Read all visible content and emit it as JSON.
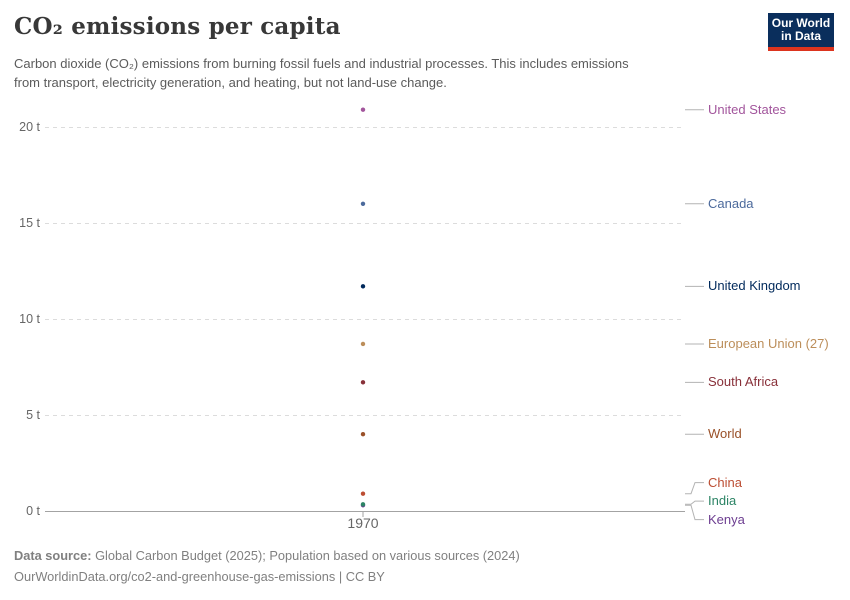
{
  "header": {
    "title": "CO₂ emissions per capita",
    "subtitle_lines": [
      "Carbon dioxide (CO₂) emissions from burning fossil fuels and industrial processes. This includes emissions",
      "from transport, electricity generation, and heating, but not land-use change."
    ],
    "logo": {
      "line1": "Our World",
      "line2": "in Data"
    }
  },
  "colors": {
    "background": "#ffffff",
    "title_text": "#383838",
    "subtitle_text": "#5b5b5b",
    "footer_text": "#808080",
    "grid_line": "#dcdcdc",
    "axis_line": "#a3a3a3",
    "tick_text": "#666666",
    "connector_line": "#b3b3b3",
    "logo_bg": "#0a2e5c",
    "logo_accent": "#dc341e"
  },
  "chart_data": {
    "type": "scatter",
    "title": "CO₂ emissions per capita",
    "unit": "t",
    "x": [
      1970
    ],
    "x_tick_label": "1970",
    "ylim": [
      0,
      21.5
    ],
    "yticks": [
      {
        "value": 0,
        "label": "0 t"
      },
      {
        "value": 5,
        "label": "5 t"
      },
      {
        "value": 10,
        "label": "10 t"
      },
      {
        "value": 15,
        "label": "15 t"
      },
      {
        "value": 20,
        "label": "20 t"
      }
    ],
    "grid": "dashed-horizontal",
    "legend_position": "right-entity-labels",
    "series": [
      {
        "name": "United States",
        "year": 1970,
        "value": 20.9,
        "color": "#A2559C"
      },
      {
        "name": "Canada",
        "year": 1970,
        "value": 16.0,
        "color": "#4C6A9C"
      },
      {
        "name": "United Kingdom",
        "year": 1970,
        "value": 11.7,
        "color": "#00295B"
      },
      {
        "name": "European Union (27)",
        "year": 1970,
        "value": 8.7,
        "color": "#BC8E5A"
      },
      {
        "name": "South Africa",
        "year": 1970,
        "value": 6.7,
        "color": "#883039"
      },
      {
        "name": "World",
        "year": 1970,
        "value": 4.0,
        "color": "#9A5129"
      },
      {
        "name": "China",
        "year": 1970,
        "value": 0.9,
        "color": "#BC4E33"
      },
      {
        "name": "Kenya",
        "year": 1970,
        "value": 0.3,
        "color": "#6D3E91"
      },
      {
        "name": "India",
        "year": 1970,
        "value": 0.35,
        "color": "#2C8465"
      }
    ]
  },
  "footer": {
    "source_label": "Data source:",
    "source_text": " Global Carbon Budget (2025); Population based on various sources (2024)",
    "url_line": "OurWorldinData.org/co2-and-greenhouse-gas-emissions | CC BY"
  }
}
